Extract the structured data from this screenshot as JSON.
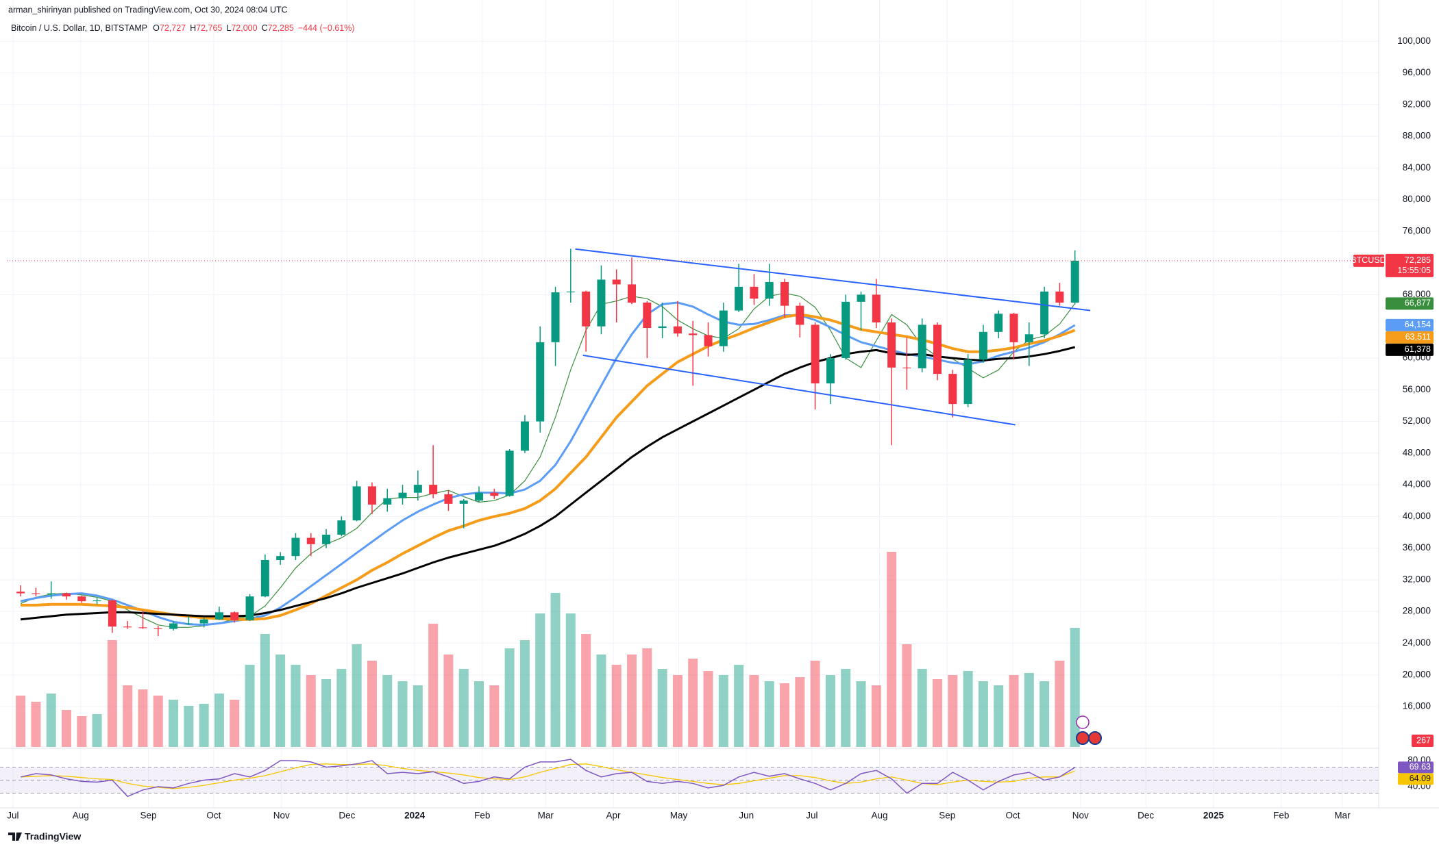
{
  "header": {
    "publisher": "arman_shirinyan published on TradingView.com, Oct 30, 2024 08:04 UTC",
    "symbol": "Bitcoin / U.S. Dollar, 1D, BITSTAMP",
    "ohlc": [
      {
        "key": "O",
        "value": "72,727"
      },
      {
        "key": "H",
        "value": "72,765"
      },
      {
        "key": "L",
        "value": "72,000"
      },
      {
        "key": "C",
        "value": "72,285"
      }
    ],
    "change": "−444 (−0.61%)"
  },
  "footer": {
    "brand": "TradingView"
  },
  "chart_data": {
    "type": "candlestick",
    "xlim": [
      -0.4,
      89.2
    ],
    "xticks": [
      {
        "value": 0,
        "label": "Jul"
      },
      {
        "value": 4.43,
        "label": "Aug"
      },
      {
        "value": 8.86,
        "label": "Sep"
      },
      {
        "value": 13.14,
        "label": "Oct"
      },
      {
        "value": 17.57,
        "label": "Nov"
      },
      {
        "value": 21.86,
        "label": "Dec"
      },
      {
        "value": 26.29,
        "label": "2024"
      },
      {
        "value": 30.71,
        "label": "Feb"
      },
      {
        "value": 34.86,
        "label": "Mar"
      },
      {
        "value": 39.29,
        "label": "Apr"
      },
      {
        "value": 43.57,
        "label": "May"
      },
      {
        "value": 48,
        "label": "Jun"
      },
      {
        "value": 52.29,
        "label": "Jul"
      },
      {
        "value": 56.71,
        "label": "Aug"
      },
      {
        "value": 61.14,
        "label": "Sep"
      },
      {
        "value": 65.43,
        "label": "Oct"
      },
      {
        "value": 69.86,
        "label": "Nov"
      },
      {
        "value": 74.14,
        "label": "Dec"
      },
      {
        "value": 78.57,
        "label": "2025"
      },
      {
        "value": 83,
        "label": "Feb"
      },
      {
        "value": 87,
        "label": "Mar"
      }
    ],
    "ylim": [
      10900,
      102700
    ],
    "yticks": [
      {
        "value": 100000,
        "label": "100,000"
      },
      {
        "value": 96000,
        "label": "96,000"
      },
      {
        "value": 92000,
        "label": "92,000"
      },
      {
        "value": 88000,
        "label": "88,000"
      },
      {
        "value": 84000,
        "label": "84,000"
      },
      {
        "value": 80000,
        "label": "80,000"
      },
      {
        "value": 76000,
        "label": "76,000"
      },
      {
        "value": 68000,
        "label": "68,000"
      },
      {
        "value": 60000,
        "label": "60,000"
      },
      {
        "value": 56000,
        "label": "56,000"
      },
      {
        "value": 52000,
        "label": "52,000"
      },
      {
        "value": 48000,
        "label": "48,000"
      },
      {
        "value": 44000,
        "label": "44,000"
      },
      {
        "value": 40000,
        "label": "40,000"
      },
      {
        "value": 36000,
        "label": "36,000"
      },
      {
        "value": 32000,
        "label": "32,000"
      },
      {
        "value": 28000,
        "label": "28,000"
      },
      {
        "value": 24000,
        "label": "24,000"
      },
      {
        "value": 20000,
        "label": "20,000"
      },
      {
        "value": 16000,
        "label": "16,000"
      }
    ],
    "grid": true,
    "up_color": "#089981",
    "down_color": "#f23645",
    "candles": {
      "open": [
        30500,
        30300,
        30200,
        30300,
        29900,
        29300,
        29400,
        26100,
        26000,
        25900,
        25800,
        26500,
        26500,
        27000,
        27900,
        26900,
        29900,
        34500,
        35000,
        37300,
        36500,
        37700,
        39500,
        43800,
        41500,
        42300,
        43000,
        44000,
        42800,
        41600,
        42000,
        43000,
        42600,
        48300,
        52000,
        62000,
        68300,
        68400,
        64000,
        69900,
        69300,
        67000,
        63800,
        64000,
        63100,
        62900,
        61500,
        66000,
        69000,
        67500,
        69600,
        66600,
        64200,
        56800,
        60000,
        67100,
        68000,
        64500,
        58800,
        58700,
        64200,
        58000,
        54200,
        59800,
        63300,
        65600,
        62000,
        63000,
        68400,
        67000
      ],
      "high": [
        31300,
        31000,
        31800,
        30400,
        30000,
        29700,
        29500,
        26800,
        28100,
        26200,
        26800,
        27400,
        27200,
        28600,
        28000,
        30200,
        35200,
        35500,
        37900,
        37900,
        38400,
        40000,
        44500,
        44300,
        43500,
        44000,
        45800,
        49000,
        43300,
        42200,
        43800,
        43500,
        48500,
        52800,
        64000,
        69000,
        73800,
        68500,
        71700,
        71200,
        72700,
        67200,
        67000,
        67200,
        64700,
        64500,
        67000,
        71900,
        70600,
        71900,
        70000,
        67000,
        64500,
        60500,
        68000,
        68400,
        70000,
        65000,
        62600,
        65000,
        64500,
        58500,
        60500,
        64200,
        66000,
        65700,
        64500,
        69000,
        69500,
        73600
      ],
      "low": [
        29900,
        29900,
        29600,
        29500,
        29100,
        28900,
        25300,
        25800,
        25800,
        24900,
        25600,
        26300,
        26000,
        26900,
        26600,
        26800,
        29800,
        33900,
        34500,
        35000,
        36000,
        37500,
        39400,
        40300,
        40600,
        41500,
        42000,
        42300,
        40700,
        38500,
        41800,
        42200,
        42500,
        48000,
        50600,
        59000,
        67000,
        60800,
        63000,
        64500,
        66800,
        60000,
        62500,
        62700,
        56500,
        60200,
        60800,
        65800,
        66700,
        66600,
        65100,
        62600,
        53500,
        54200,
        59800,
        63500,
        63800,
        49000,
        56000,
        58200,
        57200,
        52500,
        53800,
        59400,
        62500,
        59800,
        59000,
        62500,
        66600,
        66800
      ],
      "close": [
        30300,
        30200,
        30300,
        29900,
        29300,
        29400,
        26100,
        26000,
        25900,
        25800,
        26500,
        26500,
        27000,
        27900,
        26900,
        29900,
        34500,
        35000,
        37300,
        36500,
        37700,
        39500,
        43800,
        41500,
        42300,
        43000,
        44000,
        42800,
        41600,
        42000,
        43000,
        42600,
        48300,
        52000,
        62000,
        68300,
        68400,
        64000,
        69900,
        69300,
        67000,
        63800,
        64000,
        63100,
        62900,
        61500,
        66000,
        69000,
        67500,
        69600,
        66600,
        64200,
        56800,
        60000,
        67100,
        68000,
        64500,
        58800,
        58700,
        64200,
        58000,
        54200,
        59800,
        63300,
        65600,
        62000,
        63000,
        68400,
        67000,
        72285
      ]
    },
    "symbol_label": "BTCUSD",
    "last_price_label": "72,285",
    "countdown": "15:55:05",
    "series": [
      {
        "color": "#388e3c",
        "width": 1.2,
        "last_label": "66,877",
        "values": [
          29000,
          29800,
          30200,
          30300,
          30100,
          29800,
          29300,
          28200,
          27200,
          26300,
          26000,
          26000,
          26200,
          26500,
          27100,
          27400,
          28700,
          31000,
          33500,
          35300,
          36500,
          37300,
          38500,
          40500,
          42200,
          42400,
          42400,
          42900,
          43300,
          42500,
          41800,
          42000,
          42700,
          44500,
          47500,
          52500,
          58500,
          63500,
          66800,
          67200,
          67800,
          67500,
          66500,
          64800,
          63700,
          62800,
          62500,
          63700,
          66200,
          67800,
          68200,
          67800,
          66400,
          63500,
          60000,
          58800,
          62200,
          65500,
          64200,
          61500,
          60200,
          59900,
          58700,
          57500,
          58500,
          60800,
          62300,
          62800,
          64300,
          66877
        ]
      },
      {
        "color": "#5b9cf6",
        "width": 3,
        "last_label": "64,154",
        "values": [
          29300,
          29700,
          30000,
          30200,
          30300,
          30000,
          29500,
          28800,
          28100,
          27300,
          26700,
          26400,
          26300,
          26500,
          26800,
          27100,
          27500,
          28500,
          29800,
          31200,
          32600,
          34000,
          35400,
          36800,
          38200,
          39500,
          40600,
          41500,
          42300,
          42800,
          43000,
          43000,
          42900,
          43400,
          44500,
          46500,
          49500,
          53000,
          56500,
          60000,
          63000,
          65500,
          66800,
          67000,
          66500,
          65500,
          64600,
          64200,
          64300,
          64800,
          65400,
          65400,
          64800,
          63900,
          62900,
          62000,
          61500,
          61000,
          60500,
          60200,
          59800,
          59400,
          59200,
          59600,
          60300,
          60800,
          61300,
          62000,
          63000,
          64154
        ]
      },
      {
        "color": "#f59c1a",
        "width": 4,
        "last_label": "63,511",
        "values": [
          28800,
          28800,
          28900,
          28900,
          28900,
          28800,
          28700,
          28500,
          28200,
          27900,
          27600,
          27400,
          27200,
          27100,
          27000,
          27000,
          27100,
          27500,
          28200,
          29000,
          30000,
          31000,
          32000,
          33200,
          34200,
          35300,
          36300,
          37300,
          38200,
          38800,
          39500,
          40000,
          40400,
          41000,
          42000,
          43500,
          45500,
          47500,
          50000,
          52500,
          54500,
          56500,
          58000,
          59500,
          60500,
          61500,
          62300,
          63000,
          63800,
          64500,
          65200,
          65500,
          65200,
          64800,
          64200,
          63600,
          63300,
          63000,
          62700,
          62300,
          61800,
          61200,
          60800,
          60800,
          61000,
          61300,
          61800,
          62200,
          62800,
          63511
        ]
      },
      {
        "color": "#000000",
        "width": 3,
        "last_label": "61,378",
        "values": [
          27000,
          27200,
          27400,
          27600,
          27700,
          27800,
          27900,
          27900,
          27800,
          27700,
          27600,
          27500,
          27400,
          27400,
          27400,
          27500,
          27800,
          28200,
          28700,
          29200,
          29700,
          30300,
          31000,
          31600,
          32200,
          32800,
          33500,
          34200,
          34800,
          35300,
          35800,
          36300,
          37000,
          37800,
          38800,
          40000,
          41500,
          43000,
          44500,
          46000,
          47500,
          48800,
          50000,
          51000,
          52000,
          53000,
          54000,
          55000,
          56000,
          57000,
          58000,
          58800,
          59500,
          60000,
          60500,
          60800,
          61000,
          60600,
          60400,
          60500,
          60200,
          60000,
          59800,
          59700,
          59900,
          60000,
          60200,
          60500,
          60900,
          61378
        ]
      }
    ],
    "trendlines": [
      {
        "color": "#2962ff",
        "x": [
          36.8,
          70.5
        ],
        "values": [
          73760,
          66010
        ]
      },
      {
        "color": "#2962ff",
        "x": [
          37.3,
          65.6
        ],
        "values": [
          60350,
          51570
        ]
      }
    ],
    "volume": {
      "ylim": [
        0,
        10000
      ],
      "current": 267,
      "values": [
        2500,
        2200,
        2600,
        1800,
        1500,
        1600,
        5200,
        3000,
        2800,
        2500,
        2300,
        2000,
        2100,
        2600,
        2300,
        4000,
        5500,
        4500,
        4000,
        3500,
        3300,
        3800,
        5000,
        4200,
        3500,
        3200,
        3000,
        6000,
        4500,
        3800,
        3200,
        3000,
        4800,
        5200,
        6500,
        7500,
        6500,
        5500,
        4500,
        4000,
        4500,
        4800,
        3800,
        3500,
        4300,
        3700,
        3500,
        4000,
        3500,
        3200,
        3100,
        3400,
        4200,
        3500,
        3800,
        3200,
        3000,
        9500,
        5000,
        3800,
        3300,
        3500,
        3700,
        3200,
        3000,
        3500,
        3600,
        3200,
        4200,
        5800
      ]
    },
    "rsi": {
      "ylim": [
        9.5,
        97.9
      ],
      "yticks": [
        {
          "value": 80,
          "label": "80.00"
        },
        {
          "value": 40,
          "label": "40.00"
        }
      ],
      "bands": [
        70,
        50,
        30
      ],
      "color": "#7e57c2",
      "ma_color": "#f7c600",
      "last_label": "69.63",
      "ma_last_label": "64.09",
      "values": [
        55,
        60,
        58,
        52,
        48,
        47,
        50,
        25,
        35,
        40,
        38,
        45,
        50,
        52,
        60,
        55,
        65,
        80,
        80,
        78,
        70,
        72,
        75,
        80,
        60,
        62,
        60,
        63,
        55,
        45,
        48,
        55,
        52,
        70,
        78,
        78,
        82,
        65,
        55,
        60,
        62,
        48,
        45,
        48,
        45,
        38,
        42,
        55,
        62,
        56,
        60,
        52,
        45,
        35,
        45,
        60,
        65,
        52,
        30,
        45,
        45,
        62,
        50,
        35,
        48,
        58,
        62,
        50,
        55,
        69.63
      ],
      "ma": [
        55,
        56,
        57,
        56,
        54,
        52,
        51,
        45,
        41,
        39,
        37,
        39,
        42,
        46,
        50,
        53,
        57,
        63,
        69,
        74,
        75,
        74,
        74,
        75,
        72,
        68,
        65,
        63,
        61,
        58,
        54,
        52,
        51,
        55,
        62,
        68,
        74,
        75,
        71,
        66,
        62,
        58,
        54,
        51,
        48,
        45,
        43,
        45,
        49,
        53,
        57,
        57,
        54,
        49,
        45,
        47,
        52,
        55,
        50,
        45,
        43,
        47,
        50,
        48,
        47,
        48,
        53,
        55,
        55,
        64.09
      ]
    }
  }
}
